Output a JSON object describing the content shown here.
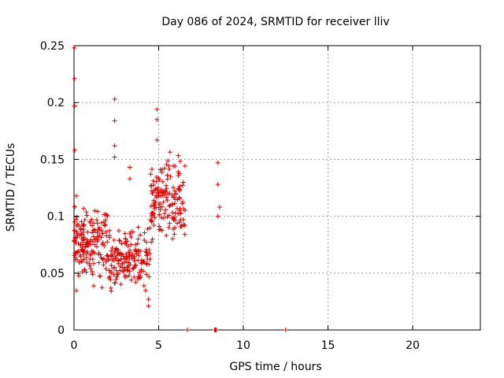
{
  "chart_data": {
    "type": "scatter",
    "title": "Day 086 of 2024, SRMTID for receiver lliv",
    "xlabel": "GPS time / hours",
    "ylabel": "SRMTID / TECUs",
    "xlim": [
      0,
      24
    ],
    "ylim": [
      0,
      0.25
    ],
    "xticks": [
      0,
      5,
      10,
      15,
      20
    ],
    "xtick_labels": [
      "0",
      "5",
      "10",
      "15",
      "20"
    ],
    "yticks": [
      0,
      0.05,
      0.1,
      0.15,
      0.2,
      0.25
    ],
    "ytick_labels": [
      "0",
      "0.05",
      "0.1",
      "0.15",
      "0.2",
      "0.25"
    ],
    "grid": true,
    "marker": "plus",
    "color": "#e00000",
    "series": [
      {
        "name": "SRMTID",
        "clusters": [
          {
            "x_range": [
              0.0,
              2.0
            ],
            "y_range": [
              0.03,
              0.12
            ],
            "count": 140,
            "seed": 11
          },
          {
            "x_range": [
              2.0,
              4.5
            ],
            "y_range": [
              0.025,
              0.1
            ],
            "count": 170,
            "seed": 23
          },
          {
            "x_range": [
              4.5,
              6.6
            ],
            "y_range": [
              0.065,
              0.16
            ],
            "count": 160,
            "seed": 37
          },
          {
            "x_range": [
              0.0,
              0.6
            ],
            "y_range": [
              0.05,
              0.11
            ],
            "count": 30,
            "seed": 41
          }
        ],
        "points": [
          {
            "x": 0.02,
            "y": 0.248
          },
          {
            "x": 0.03,
            "y": 0.221
          },
          {
            "x": 0.04,
            "y": 0.197
          },
          {
            "x": 0.05,
            "y": 0.158
          },
          {
            "x": 2.4,
            "y": 0.203
          },
          {
            "x": 2.4,
            "y": 0.184
          },
          {
            "x": 2.4,
            "y": 0.162
          },
          {
            "x": 2.4,
            "y": 0.152
          },
          {
            "x": 3.3,
            "y": 0.143
          },
          {
            "x": 3.3,
            "y": 0.133
          },
          {
            "x": 4.4,
            "y": 0.021
          },
          {
            "x": 4.4,
            "y": 0.027
          },
          {
            "x": 4.9,
            "y": 0.194
          },
          {
            "x": 4.9,
            "y": 0.185
          },
          {
            "x": 4.9,
            "y": 0.167
          },
          {
            "x": 8.5,
            "y": 0.147
          },
          {
            "x": 8.5,
            "y": 0.128
          },
          {
            "x": 8.6,
            "y": 0.108
          },
          {
            "x": 8.5,
            "y": 0.1
          },
          {
            "x": 6.7,
            "y": 0.0
          },
          {
            "x": 8.3,
            "y": 0.0
          },
          {
            "x": 8.35,
            "y": 0.0
          },
          {
            "x": 8.4,
            "y": 0.0
          },
          {
            "x": 12.5,
            "y": 0.0
          }
        ]
      }
    ]
  }
}
